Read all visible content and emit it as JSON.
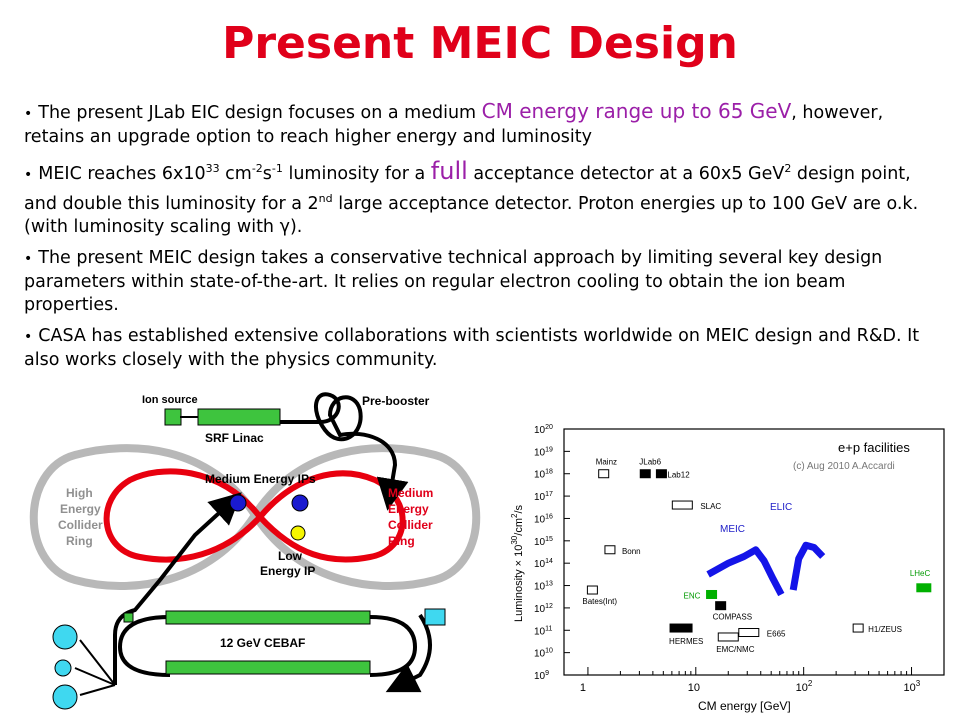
{
  "title": "Present MEIC Design",
  "bullets": {
    "b1": {
      "pre": "The present JLab EIC design focuses on a medium ",
      "highlight": "CM energy range up to 65 GeV",
      "post": ", however, retains an upgrade option to reach higher energy and luminosity"
    },
    "b2": {
      "p1": "MEIC reaches 6x10",
      "exp1": "33",
      "p2": " cm",
      "exp2": "-2",
      "p3": "s",
      "exp3": "-1",
      "p4": " luminosity for a ",
      "highlight": "full",
      "p5": " acceptance detector at a 60x5 GeV",
      "exp4": "2",
      "p6": " design point, and double this luminosity for a 2",
      "exp5": "nd",
      "p7": " large acceptance detector. Proton energies up to 100 GeV are o.k. (with luminosity scaling with ",
      "gamma": "γ",
      "p8": ")."
    },
    "b3": "The present MEIC design takes a conservative technical approach by limiting several key design parameters within state-of-the-art. It relies on regular electron cooling to obtain the ion beam properties.",
    "b4": "CASA has established extensive collaborations with scientists worldwide on MEIC design and R&D. It also works closely with the physics community."
  },
  "diagram": {
    "ion_source": "Ion source",
    "pre_booster": "Pre-booster",
    "srf_linac": "SRF Linac",
    "medium_energy_ips": "Medium Energy IPs",
    "high_ring_1": "High",
    "high_ring_2": "Energy",
    "high_ring_3": "Collider",
    "high_ring_4": "Ring",
    "med_ring_1": "Medium",
    "med_ring_2": "Energy",
    "med_ring_3": "Collider",
    "med_ring_4": "Ring",
    "low_ip_1": "Low",
    "low_ip_2": "Energy IP",
    "cebaf": "12 GeV CEBAF",
    "colors": {
      "ring_red": "#e8000f",
      "ring_gray": "#b8b8b8",
      "linac_green": "#3ec43e",
      "ip_blue": "#1a1ad0",
      "ip_yellow": "#f5f500",
      "cyan": "#3fd8f0",
      "label_red": "#e0001a"
    }
  },
  "plot": {
    "title": "e+p facilities",
    "credit": "(c) Aug 2010 A.Accardi",
    "ylabel": "Luminosity × 10",
    "ylabel_exp": "30",
    "ylabel_unit": "/cm",
    "ylabel_unit_exp": "2",
    "ylabel_tail": "/s",
    "xlabel": "CM energy  [GeV]",
    "y_ticks": [
      {
        "base": "10",
        "exp": "9"
      },
      {
        "base": "10",
        "exp": "10"
      },
      {
        "base": "10",
        "exp": "11"
      },
      {
        "base": "10",
        "exp": "12"
      },
      {
        "base": "10",
        "exp": "13"
      },
      {
        "base": "10",
        "exp": "14"
      },
      {
        "base": "10",
        "exp": "15"
      },
      {
        "base": "10",
        "exp": "16"
      },
      {
        "base": "10",
        "exp": "17"
      },
      {
        "base": "10",
        "exp": "18"
      },
      {
        "base": "10",
        "exp": "19"
      },
      {
        "base": "10",
        "exp": "20"
      }
    ],
    "x_ticks": [
      {
        "base": "1",
        "exp": ""
      },
      {
        "base": "10",
        "exp": ""
      },
      {
        "base": "10",
        "exp": "2"
      },
      {
        "base": "10",
        "exp": "3"
      }
    ],
    "facilities": [
      {
        "name": "Mainz",
        "energy": 1.4,
        "lum": 18.0,
        "style": "open"
      },
      {
        "name": "JLab6",
        "energy": 3.4,
        "lum": 18.0,
        "style": "filled"
      },
      {
        "name": "JLab12",
        "energy": 4.8,
        "lum": 18.0,
        "style": "filled"
      },
      {
        "name": "SLAC",
        "energy": 7.5,
        "lum": 16.6,
        "style": "open"
      },
      {
        "name": "Bonn",
        "energy": 1.6,
        "lum": 14.6,
        "style": "open"
      },
      {
        "name": "Bates(Int)",
        "energy": 1.1,
        "lum": 12.8,
        "style": "open"
      },
      {
        "name": "ENC",
        "energy": 14.0,
        "lum": 12.6,
        "style": "green"
      },
      {
        "name": "COMPASS",
        "energy": 17.0,
        "lum": 12.1,
        "style": "filled"
      },
      {
        "name": "HERMES",
        "energy": 7.3,
        "lum": 11.1,
        "style": "filled"
      },
      {
        "name": "E665",
        "energy": 31.0,
        "lum": 10.9,
        "style": "open"
      },
      {
        "name": "EMC/NMC",
        "energy": 20.0,
        "lum": 10.7,
        "style": "open"
      },
      {
        "name": "H1/ZEUS",
        "energy": 320.0,
        "lum": 11.1,
        "style": "open"
      },
      {
        "name": "LHeC",
        "energy": 1300.0,
        "lum": 12.9,
        "style": "green"
      }
    ],
    "meic_label": "MEIC",
    "elic_label": "ELIC",
    "meic_curve": [
      [
        13,
        13.5
      ],
      [
        20,
        14.0
      ],
      [
        28,
        14.3
      ],
      [
        36,
        14.6
      ],
      [
        43,
        14.1
      ],
      [
        52,
        13.3
      ],
      [
        62,
        12.6
      ]
    ],
    "elic_curve": [
      [
        80,
        12.8
      ],
      [
        90,
        14.2
      ],
      [
        105,
        14.8
      ],
      [
        125,
        14.7
      ],
      [
        150,
        14.3
      ]
    ],
    "colors": {
      "accent_blue": "#1414e8",
      "green": "#00b000",
      "label_blue": "#2020c8",
      "label_green": "#009a00"
    }
  },
  "chart_data": {
    "type": "scatter",
    "title": "e+p facilities",
    "xlabel": "CM energy [GeV]",
    "ylabel": "Luminosity × 10^30/cm^2/s",
    "x_scale": "log",
    "xlim": [
      0.6,
      2000
    ],
    "y_scale": "log",
    "ylim": [
      "10^9",
      "10^20"
    ],
    "series": [
      {
        "name": "Mainz",
        "x": 1.4,
        "y": "10^18"
      },
      {
        "name": "JLab6",
        "x": 3.4,
        "y": "10^18"
      },
      {
        "name": "JLab12",
        "x": 4.8,
        "y": "10^18"
      },
      {
        "name": "SLAC",
        "x": 7.5,
        "y": "10^16.6"
      },
      {
        "name": "Bonn",
        "x": 1.6,
        "y": "10^14.6"
      },
      {
        "name": "Bates(Int)",
        "x": 1.1,
        "y": "10^12.8"
      },
      {
        "name": "ENC",
        "x": 14,
        "y": "10^12.6"
      },
      {
        "name": "COMPASS",
        "x": 17,
        "y": "10^12.1"
      },
      {
        "name": "HERMES",
        "x": 7.3,
        "y": "10^11.1"
      },
      {
        "name": "E665",
        "x": 31,
        "y": "10^10.9"
      },
      {
        "name": "EMC/NMC",
        "x": 20,
        "y": "10^10.7"
      },
      {
        "name": "H1/ZEUS",
        "x": 320,
        "y": "10^11.1"
      },
      {
        "name": "LHeC",
        "x": 1300,
        "y": "10^12.9"
      },
      {
        "name": "MEIC",
        "x": [
          13,
          20,
          28,
          36,
          43,
          52,
          62
        ],
        "y": [
          "10^13.5",
          "10^14.0",
          "10^14.3",
          "10^14.6",
          "10^14.1",
          "10^13.3",
          "10^12.6"
        ]
      },
      {
        "name": "ELIC",
        "x": [
          80,
          90,
          105,
          125,
          150
        ],
        "y": [
          "10^12.8",
          "10^14.2",
          "10^14.8",
          "10^14.7",
          "10^14.3"
        ]
      }
    ]
  }
}
